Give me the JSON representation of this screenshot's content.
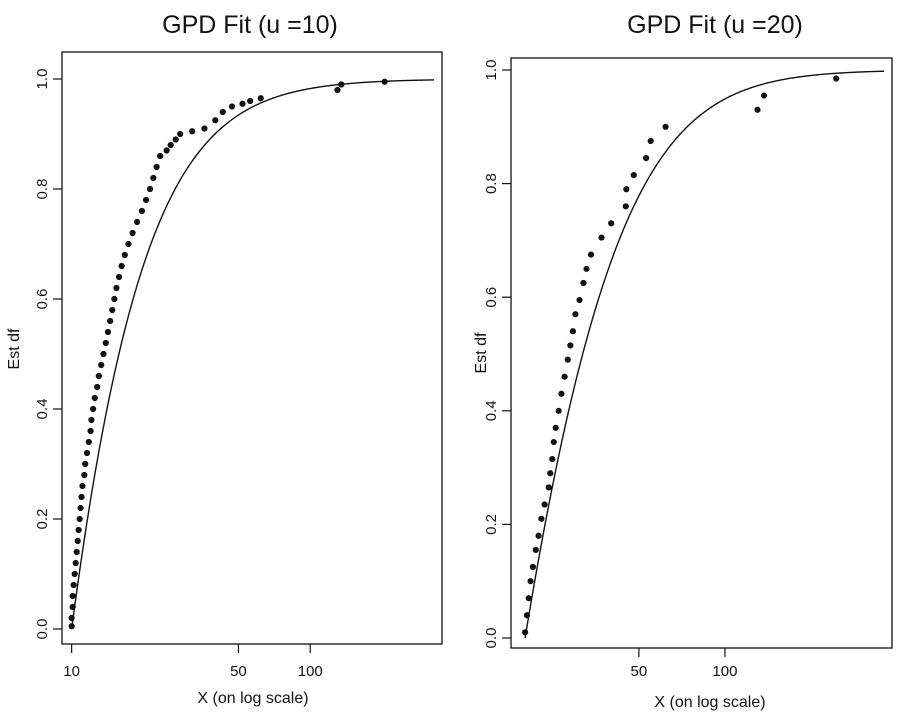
{
  "chart_data": [
    {
      "type": "scatter",
      "title": "GPD Fit (u =10)",
      "xlabel": "X (on log scale)",
      "ylabel": "Est df",
      "xscale": "log",
      "xlim": [
        9.2,
        330
      ],
      "ylim": [
        0.0,
        1.0
      ],
      "xticks": [
        10,
        50,
        100
      ],
      "yticks": [
        0.0,
        0.2,
        0.4,
        0.6,
        0.8,
        1.0
      ],
      "ytick_labels": [
        "0.0",
        "0.2",
        "0.4",
        "0.6",
        "0.8",
        "1.0"
      ],
      "grid": false,
      "threshold": 10,
      "gpd_fit": {
        "xi": 0.49,
        "sigma": 7.0
      },
      "points": [
        [
          10.0,
          0.005
        ],
        [
          10.0,
          0.02
        ],
        [
          10.1,
          0.04
        ],
        [
          10.1,
          0.06
        ],
        [
          10.2,
          0.08
        ],
        [
          10.3,
          0.1
        ],
        [
          10.4,
          0.12
        ],
        [
          10.5,
          0.14
        ],
        [
          10.6,
          0.16
        ],
        [
          10.7,
          0.18
        ],
        [
          10.8,
          0.2
        ],
        [
          10.9,
          0.22
        ],
        [
          11.0,
          0.24
        ],
        [
          11.1,
          0.26
        ],
        [
          11.3,
          0.28
        ],
        [
          11.4,
          0.3
        ],
        [
          11.6,
          0.32
        ],
        [
          11.8,
          0.34
        ],
        [
          12.0,
          0.36
        ],
        [
          12.1,
          0.38
        ],
        [
          12.3,
          0.4
        ],
        [
          12.5,
          0.42
        ],
        [
          12.8,
          0.44
        ],
        [
          13.0,
          0.46
        ],
        [
          13.3,
          0.48
        ],
        [
          13.6,
          0.5
        ],
        [
          13.9,
          0.52
        ],
        [
          14.2,
          0.54
        ],
        [
          14.5,
          0.56
        ],
        [
          14.8,
          0.58
        ],
        [
          15.1,
          0.6
        ],
        [
          15.4,
          0.62
        ],
        [
          15.8,
          0.64
        ],
        [
          16.2,
          0.66
        ],
        [
          16.7,
          0.68
        ],
        [
          17.3,
          0.7
        ],
        [
          18.0,
          0.72
        ],
        [
          18.8,
          0.74
        ],
        [
          19.7,
          0.76
        ],
        [
          20.5,
          0.78
        ],
        [
          21.3,
          0.8
        ],
        [
          22.0,
          0.82
        ],
        [
          22.7,
          0.84
        ],
        [
          23.5,
          0.86
        ],
        [
          25.0,
          0.87
        ],
        [
          26.0,
          0.88
        ],
        [
          27.3,
          0.89
        ],
        [
          28.5,
          0.9
        ],
        [
          32.0,
          0.905
        ],
        [
          36.0,
          0.91
        ],
        [
          40.0,
          0.925
        ],
        [
          43.0,
          0.94
        ],
        [
          47.0,
          0.95
        ],
        [
          52.0,
          0.955
        ],
        [
          56.0,
          0.96
        ],
        [
          62.0,
          0.965
        ],
        [
          130.0,
          0.98
        ],
        [
          135.0,
          0.99
        ],
        [
          205.0,
          0.995
        ]
      ]
    },
    {
      "type": "scatter",
      "title": "GPD Fit (u =20)",
      "xlabel": "X (on log scale)",
      "ylabel": "Est df",
      "xscale": "log",
      "xlim": [
        18.0,
        360
      ],
      "ylim": [
        0.0,
        1.0
      ],
      "xticks": [
        50,
        100
      ],
      "yticks": [
        0.0,
        0.2,
        0.4,
        0.6,
        0.8,
        1.0
      ],
      "ytick_labels": [
        "0.0",
        "0.2",
        "0.4",
        "0.6",
        "0.8",
        "1.0"
      ],
      "grid": false,
      "threshold": 20,
      "gpd_fit": {
        "xi": 0.36,
        "sigma": 15.0
      },
      "points": [
        [
          20.0,
          0.01
        ],
        [
          20.3,
          0.04
        ],
        [
          20.6,
          0.07
        ],
        [
          20.9,
          0.1
        ],
        [
          21.3,
          0.125
        ],
        [
          21.8,
          0.155
        ],
        [
          22.3,
          0.18
        ],
        [
          22.8,
          0.21
        ],
        [
          23.4,
          0.235
        ],
        [
          24.2,
          0.265
        ],
        [
          24.5,
          0.29
        ],
        [
          24.9,
          0.315
        ],
        [
          25.2,
          0.345
        ],
        [
          25.6,
          0.37
        ],
        [
          26.2,
          0.4
        ],
        [
          26.8,
          0.43
        ],
        [
          27.5,
          0.46
        ],
        [
          28.2,
          0.49
        ],
        [
          28.8,
          0.515
        ],
        [
          29.4,
          0.54
        ],
        [
          30.0,
          0.57
        ],
        [
          31.0,
          0.595
        ],
        [
          32.0,
          0.625
        ],
        [
          32.8,
          0.65
        ],
        [
          34.0,
          0.675
        ],
        [
          37.0,
          0.705
        ],
        [
          40.0,
          0.73
        ],
        [
          45.0,
          0.76
        ],
        [
          45.2,
          0.79
        ],
        [
          48.0,
          0.815
        ],
        [
          53.0,
          0.845
        ],
        [
          55.0,
          0.875
        ],
        [
          62.0,
          0.9
        ],
        [
          130.0,
          0.93
        ],
        [
          137.0,
          0.955
        ],
        [
          245.0,
          0.985
        ]
      ]
    }
  ]
}
